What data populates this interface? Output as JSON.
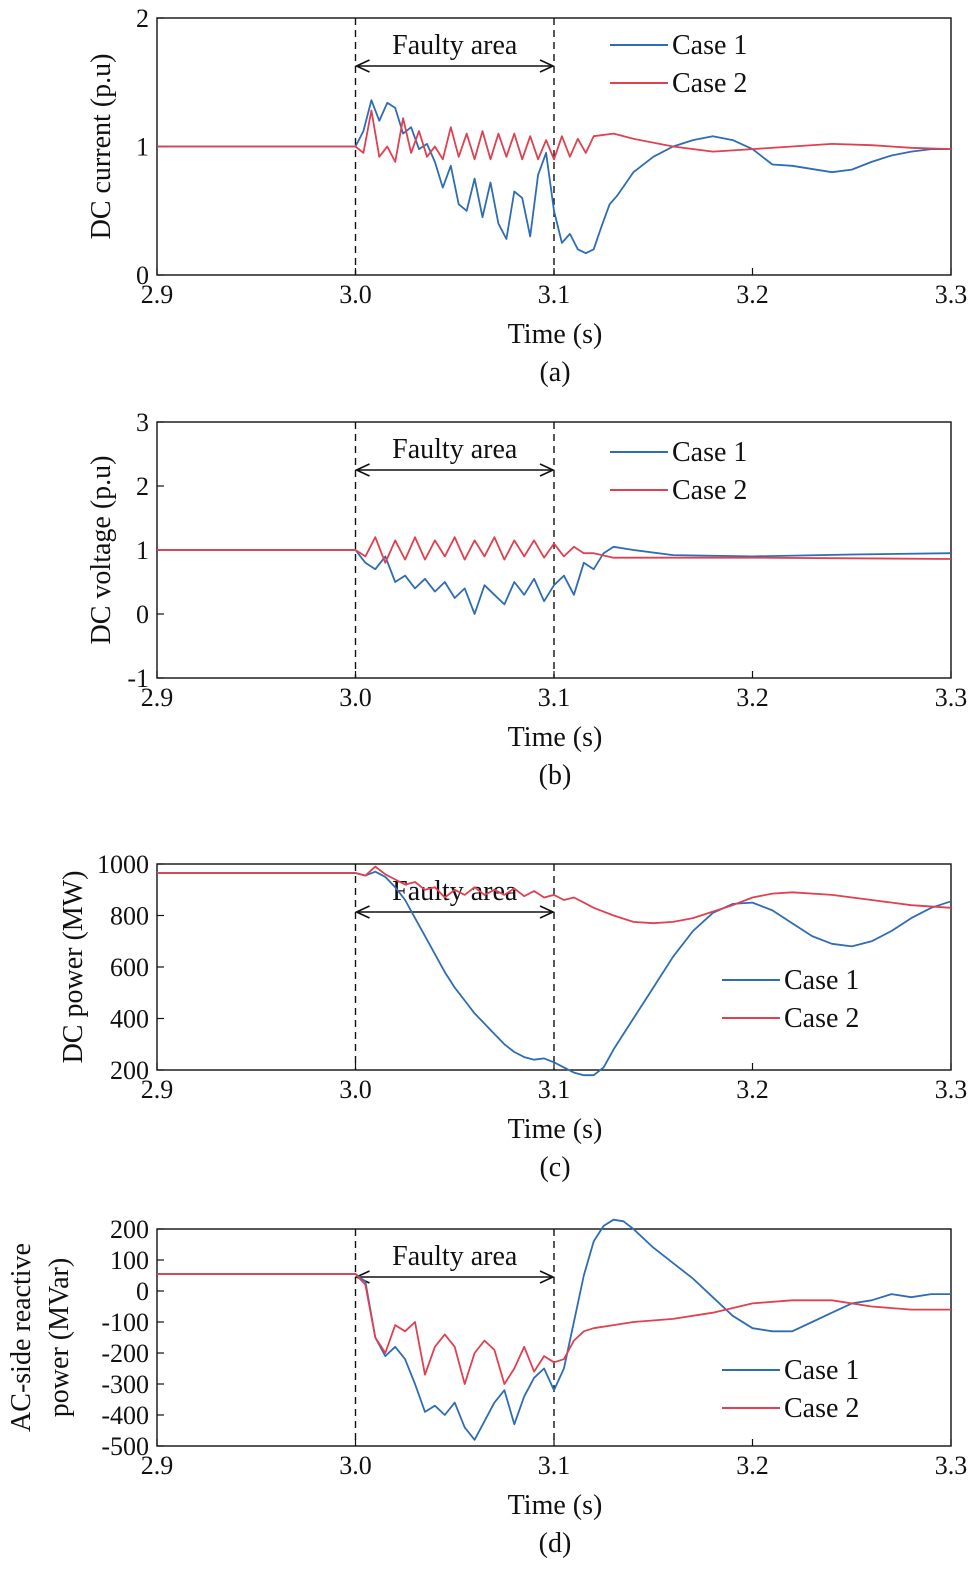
{
  "colors": {
    "case1": "#2e6db4",
    "case2": "#e04050",
    "axis": "#111111"
  },
  "chart_data": [
    {
      "type": "line",
      "caption": "(a)",
      "xlabel": "Time (s)",
      "ylabel": "DC current (p.u)",
      "xlim": [
        2.9,
        3.3
      ],
      "ylim": [
        0,
        2
      ],
      "xticks": [
        "2.9",
        "3.0",
        "3.1",
        "3.2",
        "3.3"
      ],
      "yticks": [
        "0",
        "1",
        "2"
      ],
      "legend_position": "top-right",
      "annotation": {
        "text": "Faulty area",
        "x_start": 3.0,
        "x_end": 3.1
      },
      "series": [
        {
          "name": "Case 1",
          "color_key": "case1",
          "x": [
            2.9,
            3.0,
            3.004,
            3.008,
            3.012,
            3.016,
            3.02,
            3.024,
            3.028,
            3.032,
            3.036,
            3.04,
            3.044,
            3.048,
            3.052,
            3.056,
            3.06,
            3.064,
            3.068,
            3.072,
            3.076,
            3.08,
            3.084,
            3.088,
            3.092,
            3.096,
            3.1,
            3.104,
            3.108,
            3.112,
            3.116,
            3.12,
            3.124,
            3.128,
            3.132,
            3.14,
            3.15,
            3.16,
            3.17,
            3.18,
            3.19,
            3.2,
            3.21,
            3.22,
            3.24,
            3.25,
            3.26,
            3.27,
            3.28,
            3.29,
            3.3
          ],
          "y": [
            1.0,
            1.0,
            1.12,
            1.36,
            1.2,
            1.34,
            1.3,
            1.1,
            1.15,
            0.98,
            1.02,
            0.88,
            0.68,
            0.85,
            0.55,
            0.5,
            0.75,
            0.45,
            0.72,
            0.4,
            0.28,
            0.65,
            0.6,
            0.3,
            0.78,
            0.95,
            0.5,
            0.25,
            0.32,
            0.2,
            0.17,
            0.2,
            0.38,
            0.55,
            0.62,
            0.8,
            0.92,
            1.0,
            1.05,
            1.08,
            1.05,
            0.98,
            0.86,
            0.85,
            0.8,
            0.82,
            0.88,
            0.93,
            0.96,
            0.98,
            0.98
          ]
        },
        {
          "name": "Case 2",
          "color_key": "case2",
          "x": [
            2.9,
            3.0,
            3.004,
            3.008,
            3.012,
            3.016,
            3.02,
            3.024,
            3.028,
            3.032,
            3.036,
            3.04,
            3.044,
            3.048,
            3.052,
            3.056,
            3.06,
            3.064,
            3.068,
            3.072,
            3.076,
            3.08,
            3.084,
            3.088,
            3.092,
            3.096,
            3.1,
            3.104,
            3.108,
            3.112,
            3.116,
            3.12,
            3.13,
            3.14,
            3.16,
            3.18,
            3.2,
            3.22,
            3.24,
            3.26,
            3.28,
            3.3
          ],
          "y": [
            1.0,
            1.0,
            0.95,
            1.28,
            0.92,
            1.0,
            0.88,
            1.22,
            0.95,
            1.12,
            0.92,
            1.0,
            0.9,
            1.15,
            0.92,
            1.1,
            0.9,
            1.12,
            0.9,
            1.1,
            0.92,
            1.1,
            0.9,
            1.08,
            0.9,
            1.05,
            0.9,
            1.08,
            0.92,
            1.06,
            0.95,
            1.08,
            1.1,
            1.06,
            1.0,
            0.96,
            0.98,
            1.0,
            1.02,
            1.01,
            0.99,
            0.98
          ]
        }
      ]
    },
    {
      "type": "line",
      "caption": "(b)",
      "xlabel": "Time (s)",
      "ylabel": "DC voltage (p.u)",
      "xlim": [
        2.9,
        3.3
      ],
      "ylim": [
        -1,
        3
      ],
      "xticks": [
        "2.9",
        "3.0",
        "3.1",
        "3.2",
        "3.3"
      ],
      "yticks": [
        "-1",
        "0",
        "1",
        "2",
        "3"
      ],
      "legend_position": "top-right",
      "annotation": {
        "text": "Faulty area",
        "x_start": 3.0,
        "x_end": 3.1
      },
      "series": [
        {
          "name": "Case 1",
          "color_key": "case1",
          "x": [
            2.9,
            3.0,
            3.005,
            3.01,
            3.015,
            3.02,
            3.025,
            3.03,
            3.035,
            3.04,
            3.045,
            3.05,
            3.055,
            3.06,
            3.065,
            3.07,
            3.075,
            3.08,
            3.085,
            3.09,
            3.095,
            3.1,
            3.105,
            3.11,
            3.115,
            3.12,
            3.125,
            3.13,
            3.14,
            3.16,
            3.2,
            3.25,
            3.3
          ],
          "y": [
            1.0,
            1.0,
            0.8,
            0.7,
            0.9,
            0.5,
            0.6,
            0.4,
            0.55,
            0.35,
            0.5,
            0.25,
            0.4,
            0.0,
            0.45,
            0.3,
            0.15,
            0.5,
            0.3,
            0.55,
            0.2,
            0.45,
            0.6,
            0.3,
            0.8,
            0.7,
            0.95,
            1.05,
            1.0,
            0.92,
            0.9,
            0.93,
            0.95
          ]
        },
        {
          "name": "Case 2",
          "color_key": "case2",
          "x": [
            2.9,
            3.0,
            3.005,
            3.01,
            3.015,
            3.02,
            3.025,
            3.03,
            3.035,
            3.04,
            3.045,
            3.05,
            3.055,
            3.06,
            3.065,
            3.07,
            3.075,
            3.08,
            3.085,
            3.09,
            3.095,
            3.1,
            3.105,
            3.11,
            3.115,
            3.12,
            3.13,
            3.16,
            3.2,
            3.25,
            3.3
          ],
          "y": [
            1.0,
            1.0,
            0.9,
            1.2,
            0.8,
            1.15,
            0.85,
            1.2,
            0.85,
            1.15,
            0.9,
            1.2,
            0.85,
            1.15,
            0.9,
            1.2,
            0.85,
            1.15,
            0.9,
            1.15,
            0.88,
            1.1,
            0.9,
            1.05,
            0.95,
            0.95,
            0.88,
            0.88,
            0.88,
            0.87,
            0.86
          ]
        }
      ]
    },
    {
      "type": "line",
      "caption": "(c)",
      "xlabel": "Time (s)",
      "ylabel": "DC power (MW)",
      "xlim": [
        2.9,
        3.3
      ],
      "ylim": [
        200,
        1000
      ],
      "xticks": [
        "2.9",
        "3.0",
        "3.1",
        "3.2",
        "3.3"
      ],
      "yticks": [
        "200",
        "400",
        "600",
        "800",
        "1000"
      ],
      "legend_position": "lower-right",
      "annotation": {
        "text": "Faulty area",
        "x_start": 3.0,
        "x_end": 3.1
      },
      "series": [
        {
          "name": "Case 1",
          "color_key": "case1",
          "x": [
            2.9,
            3.0,
            3.005,
            3.01,
            3.015,
            3.02,
            3.025,
            3.03,
            3.035,
            3.04,
            3.045,
            3.05,
            3.055,
            3.06,
            3.065,
            3.07,
            3.075,
            3.08,
            3.085,
            3.09,
            3.095,
            3.1,
            3.105,
            3.11,
            3.115,
            3.12,
            3.125,
            3.13,
            3.14,
            3.15,
            3.16,
            3.17,
            3.18,
            3.19,
            3.2,
            3.21,
            3.22,
            3.23,
            3.24,
            3.25,
            3.26,
            3.27,
            3.28,
            3.29,
            3.3
          ],
          "y": [
            965,
            965,
            955,
            970,
            950,
            910,
            860,
            790,
            720,
            650,
            580,
            520,
            470,
            420,
            380,
            340,
            300,
            270,
            250,
            240,
            245,
            230,
            210,
            190,
            180,
            180,
            210,
            280,
            400,
            520,
            640,
            740,
            810,
            845,
            850,
            820,
            770,
            720,
            690,
            680,
            700,
            740,
            790,
            830,
            855
          ]
        },
        {
          "name": "Case 2",
          "color_key": "case2",
          "x": [
            2.9,
            3.0,
            3.005,
            3.01,
            3.015,
            3.02,
            3.025,
            3.03,
            3.035,
            3.04,
            3.045,
            3.05,
            3.055,
            3.06,
            3.065,
            3.07,
            3.075,
            3.08,
            3.085,
            3.09,
            3.095,
            3.1,
            3.105,
            3.11,
            3.115,
            3.12,
            3.13,
            3.14,
            3.15,
            3.16,
            3.17,
            3.18,
            3.19,
            3.2,
            3.21,
            3.22,
            3.24,
            3.26,
            3.28,
            3.3
          ],
          "y": [
            965,
            965,
            955,
            990,
            960,
            940,
            920,
            930,
            900,
            910,
            870,
            900,
            880,
            910,
            880,
            900,
            880,
            905,
            875,
            895,
            870,
            880,
            860,
            870,
            850,
            830,
            800,
            775,
            770,
            775,
            790,
            815,
            840,
            870,
            885,
            890,
            880,
            860,
            840,
            830
          ]
        }
      ]
    },
    {
      "type": "line",
      "caption": "(d)",
      "xlabel": "Time (s)",
      "ylabel": "AC-side reactive\npower (MVar)",
      "xlim": [
        2.9,
        3.3
      ],
      "ylim": [
        -500,
        200
      ],
      "xticks": [
        "2.9",
        "3.0",
        "3.1",
        "3.2",
        "3.3"
      ],
      "yticks": [
        "-500",
        "-400",
        "-300",
        "-200",
        "-100",
        "0",
        "100",
        "200"
      ],
      "legend_position": "lower-right",
      "annotation": {
        "text": "Faulty area",
        "x_start": 3.0,
        "x_end": 3.1
      },
      "series": [
        {
          "name": "Case 1",
          "color_key": "case1",
          "x": [
            2.9,
            3.0,
            3.005,
            3.01,
            3.015,
            3.02,
            3.025,
            3.03,
            3.035,
            3.04,
            3.045,
            3.05,
            3.055,
            3.06,
            3.065,
            3.07,
            3.075,
            3.08,
            3.085,
            3.09,
            3.095,
            3.1,
            3.105,
            3.11,
            3.115,
            3.12,
            3.125,
            3.13,
            3.135,
            3.14,
            3.15,
            3.16,
            3.17,
            3.18,
            3.19,
            3.2,
            3.21,
            3.22,
            3.23,
            3.24,
            3.25,
            3.26,
            3.27,
            3.28,
            3.29,
            3.3
          ],
          "y": [
            55,
            55,
            30,
            -150,
            -210,
            -180,
            -220,
            -300,
            -390,
            -370,
            -400,
            -360,
            -440,
            -480,
            -420,
            -360,
            -320,
            -430,
            -340,
            -280,
            -250,
            -320,
            -250,
            -100,
            50,
            160,
            210,
            230,
            225,
            200,
            140,
            90,
            40,
            -20,
            -80,
            -120,
            -130,
            -130,
            -100,
            -70,
            -40,
            -30,
            -10,
            -20,
            -10,
            -10
          ]
        },
        {
          "name": "Case 2",
          "color_key": "case2",
          "x": [
            2.9,
            3.0,
            3.005,
            3.01,
            3.015,
            3.02,
            3.025,
            3.03,
            3.035,
            3.04,
            3.045,
            3.05,
            3.055,
            3.06,
            3.065,
            3.07,
            3.075,
            3.08,
            3.085,
            3.09,
            3.095,
            3.1,
            3.105,
            3.11,
            3.115,
            3.12,
            3.13,
            3.14,
            3.16,
            3.18,
            3.2,
            3.22,
            3.24,
            3.26,
            3.28,
            3.3
          ],
          "y": [
            55,
            55,
            20,
            -150,
            -200,
            -110,
            -130,
            -100,
            -270,
            -180,
            -140,
            -180,
            -300,
            -200,
            -160,
            -190,
            -300,
            -250,
            -180,
            -260,
            -210,
            -230,
            -220,
            -160,
            -130,
            -120,
            -110,
            -100,
            -90,
            -70,
            -40,
            -30,
            -30,
            -50,
            -60,
            -60
          ]
        }
      ]
    }
  ]
}
